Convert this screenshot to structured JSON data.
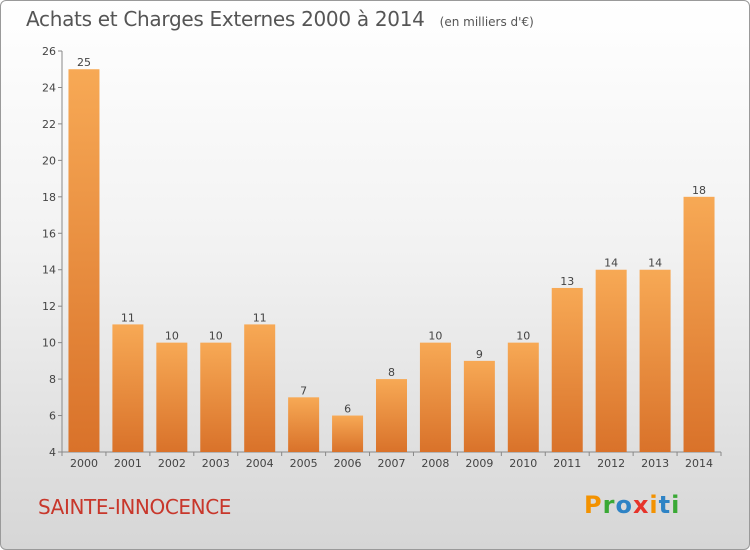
{
  "title": "Achats et Charges Externes 2000 à 2014",
  "subtitle": "(en milliers d'€)",
  "town": "SAINTE-INNOCENCE",
  "logo": {
    "text": "Proxiti",
    "colors": [
      "#f39200",
      "#3aa935",
      "#2e83c5",
      "#e6332a",
      "#f39200",
      "#2e83c5",
      "#3aa935"
    ]
  },
  "colors": {
    "bar_top": "#f7a955",
    "bar_bottom": "#d9722a",
    "title": "#555555",
    "town": "#c8372b"
  },
  "chart_data": {
    "type": "bar",
    "title": "Achats et Charges Externes 2000 à 2014",
    "subtitle": "(en milliers d'€)",
    "categories": [
      "2000",
      "2001",
      "2002",
      "2003",
      "2004",
      "2005",
      "2006",
      "2007",
      "2008",
      "2009",
      "2010",
      "2011",
      "2012",
      "2013",
      "2014"
    ],
    "values": [
      25,
      11,
      10,
      10,
      11,
      7,
      6,
      8,
      10,
      9,
      10,
      13,
      14,
      14,
      18
    ],
    "ylim": [
      4,
      26
    ],
    "yticks": [
      4,
      6,
      8,
      10,
      12,
      14,
      16,
      18,
      20,
      22,
      24,
      26
    ],
    "grid": false,
    "data_labels": true
  }
}
